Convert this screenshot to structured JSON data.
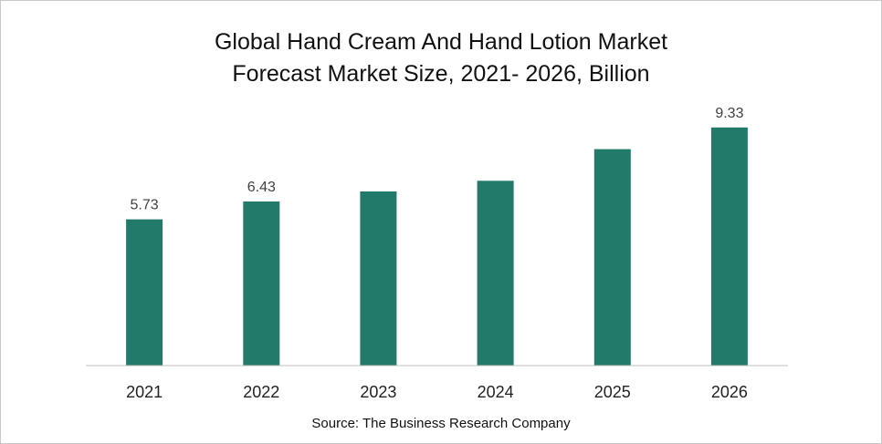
{
  "chart_data": {
    "type": "bar",
    "title_line1": "Global Hand Cream And Hand Lotion Market",
    "title_line2": "Forecast Market Size, 2021- 2026, Billion",
    "categories": [
      "2021",
      "2022",
      "2023",
      "2024",
      "2025",
      "2026"
    ],
    "values": [
      5.73,
      6.43,
      6.82,
      7.24,
      8.48,
      9.33
    ],
    "data_labels": [
      "5.73",
      "6.43",
      "",
      "",
      "",
      "9.33"
    ],
    "xlabel": "",
    "ylabel": "",
    "ylim": [
      0,
      10
    ],
    "grid": false,
    "legend": "none",
    "bar_color": "#217a6a"
  },
  "source": "Source: The Business Research Company"
}
